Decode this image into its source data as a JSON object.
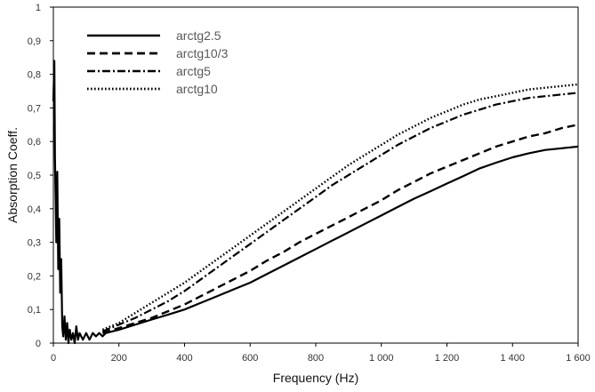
{
  "chart_data": {
    "type": "line",
    "title": "",
    "xlabel": "Frequency (Hz)",
    "ylabel": "Absorption Coeff.",
    "xlim": [
      0,
      1600
    ],
    "ylim": [
      0,
      1
    ],
    "x_ticks": [
      "0",
      "200",
      "400",
      "600",
      "800",
      "1 000",
      "1 200",
      "1 400",
      "1 600"
    ],
    "y_ticks": [
      "0",
      "0,1",
      "0,2",
      "0,3",
      "0,4",
      "0,5",
      "0,6",
      "0,7",
      "0,8",
      "0,9",
      "1"
    ],
    "grid": false,
    "legend_position": "top-left",
    "series": [
      {
        "name": "arctg2.5",
        "style": "solid",
        "color": "#000000",
        "x": [
          0,
          3,
          5,
          7,
          9,
          12,
          15,
          18,
          21,
          24,
          27,
          30,
          34,
          38,
          42,
          46,
          50,
          55,
          60,
          65,
          70,
          75,
          80,
          90,
          100,
          110,
          120,
          130,
          140,
          150,
          160,
          180,
          200,
          250,
          300,
          350,
          400,
          450,
          500,
          550,
          600,
          650,
          700,
          750,
          800,
          850,
          900,
          950,
          1000,
          1050,
          1100,
          1150,
          1200,
          1250,
          1300,
          1350,
          1400,
          1450,
          1500,
          1550,
          1600
        ],
        "y": [
          0.72,
          0.84,
          0.55,
          0.42,
          0.3,
          0.51,
          0.22,
          0.37,
          0.15,
          0.25,
          0.05,
          0.02,
          0.08,
          0.01,
          0.06,
          0.0,
          0.04,
          0.01,
          0.03,
          0.0,
          0.05,
          0.01,
          0.03,
          0.01,
          0.03,
          0.01,
          0.03,
          0.02,
          0.03,
          0.02,
          0.03,
          0.035,
          0.04,
          0.055,
          0.07,
          0.085,
          0.1,
          0.12,
          0.14,
          0.16,
          0.18,
          0.205,
          0.23,
          0.255,
          0.28,
          0.305,
          0.33,
          0.355,
          0.38,
          0.405,
          0.43,
          0.452,
          0.475,
          0.497,
          0.52,
          0.537,
          0.553,
          0.565,
          0.575,
          0.58,
          0.585
        ]
      },
      {
        "name": "arctg10/3",
        "style": "dashed",
        "color": "#000000",
        "x": [
          150,
          200,
          250,
          300,
          350,
          400,
          450,
          500,
          550,
          600,
          650,
          700,
          750,
          800,
          850,
          900,
          950,
          1000,
          1050,
          1100,
          1150,
          1200,
          1250,
          1300,
          1350,
          1400,
          1450,
          1500,
          1550,
          1600
        ],
        "y": [
          0.03,
          0.045,
          0.06,
          0.075,
          0.095,
          0.115,
          0.14,
          0.165,
          0.19,
          0.215,
          0.245,
          0.27,
          0.3,
          0.325,
          0.35,
          0.375,
          0.4,
          0.425,
          0.455,
          0.48,
          0.505,
          0.525,
          0.545,
          0.565,
          0.585,
          0.6,
          0.615,
          0.625,
          0.64,
          0.65
        ]
      },
      {
        "name": "arctg5",
        "style": "dashdot",
        "color": "#000000",
        "x": [
          150,
          200,
          250,
          300,
          350,
          400,
          450,
          500,
          550,
          600,
          650,
          700,
          750,
          800,
          850,
          900,
          950,
          1000,
          1050,
          1100,
          1150,
          1200,
          1250,
          1300,
          1350,
          1400,
          1450,
          1500,
          1550,
          1600
        ],
        "y": [
          0.035,
          0.055,
          0.075,
          0.1,
          0.125,
          0.155,
          0.19,
          0.225,
          0.26,
          0.295,
          0.33,
          0.365,
          0.4,
          0.435,
          0.47,
          0.5,
          0.53,
          0.56,
          0.59,
          0.615,
          0.64,
          0.66,
          0.68,
          0.695,
          0.71,
          0.72,
          0.73,
          0.735,
          0.74,
          0.745
        ]
      },
      {
        "name": "arctg10",
        "style": "dotted",
        "color": "#000000",
        "x": [
          150,
          200,
          250,
          300,
          350,
          400,
          450,
          500,
          550,
          600,
          650,
          700,
          750,
          800,
          850,
          900,
          950,
          1000,
          1050,
          1100,
          1150,
          1200,
          1250,
          1300,
          1350,
          1400,
          1450,
          1500,
          1550,
          1600
        ],
        "y": [
          0.04,
          0.06,
          0.09,
          0.12,
          0.15,
          0.18,
          0.215,
          0.25,
          0.285,
          0.32,
          0.355,
          0.39,
          0.425,
          0.46,
          0.495,
          0.53,
          0.56,
          0.59,
          0.62,
          0.645,
          0.67,
          0.69,
          0.71,
          0.725,
          0.735,
          0.745,
          0.755,
          0.76,
          0.765,
          0.77
        ]
      }
    ]
  }
}
